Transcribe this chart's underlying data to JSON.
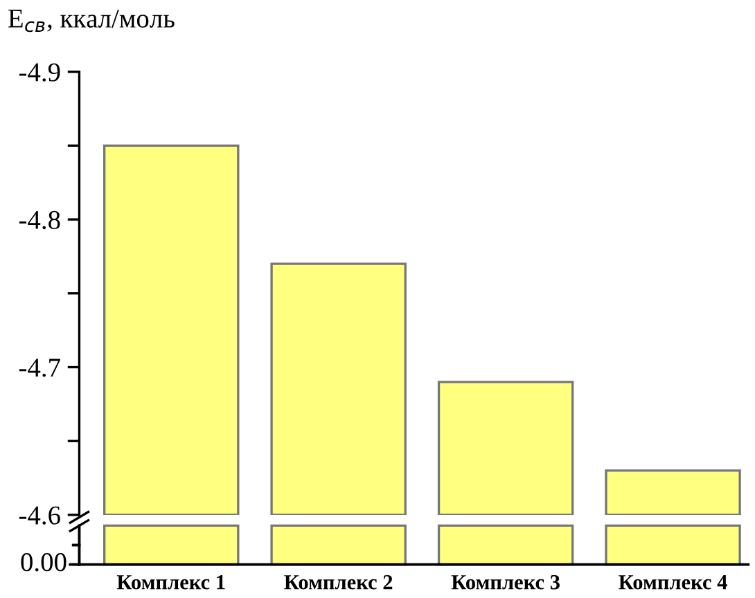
{
  "chart_data": {
    "type": "bar",
    "ylabel": "E$_{св}$, ккал/моль",
    "categories": [
      "Комплекс 1",
      "Комплекс 2",
      "Комплекс 3",
      "Комплекс 4"
    ],
    "color": "#ffff80",
    "values": [
      -4.85,
      -4.77,
      -4.69,
      -4.63
    ],
    "ylim": [
      -4.6,
      -4.9
    ],
    "yticks": [
      -4.6,
      {
        "value": -4.65,
        "label": null
      },
      -4.7,
      {
        "value": -4.75,
        "label": null
      },
      -4.8,
      {
        "value": -4.85,
        "label": null
      },
      -4.9
    ],
    "grid": false,
    "annotations": [
      "0.00"
    ]
  }
}
